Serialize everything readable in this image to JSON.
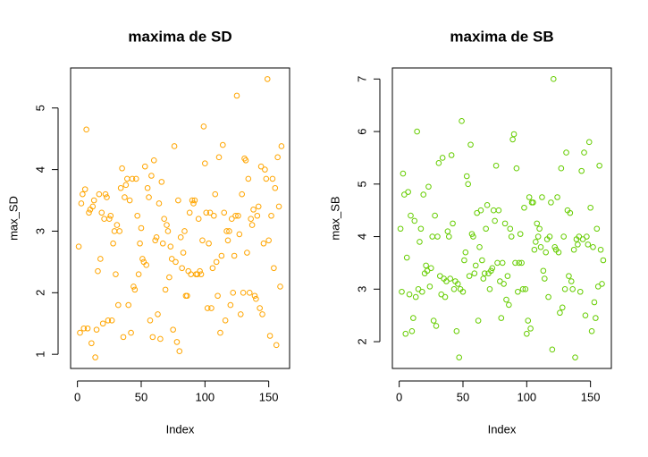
{
  "chart_data": [
    {
      "type": "scatter",
      "title": "maxima de SD",
      "x_label": "Index",
      "y_label": "max_SD",
      "color": "#ffa500",
      "x": [
        1,
        2,
        3,
        4,
        5,
        6,
        7,
        8,
        9,
        10,
        11,
        12,
        13,
        14,
        15,
        16,
        17,
        18,
        19,
        20,
        21,
        22,
        23,
        24,
        25,
        26,
        27,
        28,
        29,
        30,
        31,
        32,
        33,
        34,
        35,
        36,
        37,
        38,
        39,
        40,
        41,
        42,
        43,
        44,
        45,
        46,
        47,
        48,
        49,
        50,
        51,
        52,
        53,
        54,
        55,
        56,
        57,
        58,
        59,
        60,
        61,
        62,
        63,
        64,
        65,
        66,
        67,
        68,
        69,
        70,
        71,
        72,
        73,
        74,
        75,
        76,
        77,
        78,
        79,
        80,
        81,
        82,
        83,
        84,
        85,
        86,
        87,
        88,
        89,
        90,
        91,
        92,
        93,
        94,
        95,
        96,
        97,
        98,
        99,
        100,
        101,
        102,
        103,
        104,
        105,
        106,
        107,
        108,
        109,
        110,
        111,
        112,
        113,
        114,
        115,
        116,
        117,
        118,
        119,
        120,
        121,
        122,
        123,
        124,
        125,
        126,
        127,
        128,
        129,
        130,
        131,
        132,
        133,
        134,
        135,
        136,
        137,
        138,
        139,
        140,
        141,
        142,
        143,
        144,
        145,
        146,
        147,
        148,
        149,
        150,
        151,
        152,
        153,
        154,
        155,
        156,
        157,
        158,
        159,
        160
      ],
      "values": [
        2.75,
        1.35,
        3.45,
        3.6,
        1.42,
        3.68,
        4.65,
        1.42,
        3.3,
        3.35,
        1.18,
        3.4,
        3.5,
        0.95,
        1.4,
        2.35,
        3.6,
        2.55,
        3.3,
        1.5,
        3.2,
        3.6,
        3.55,
        1.55,
        3.2,
        3.25,
        1.55,
        2.8,
        3.0,
        2.3,
        3.1,
        1.8,
        3.0,
        3.7,
        4.02,
        1.28,
        3.55,
        3.75,
        3.85,
        1.8,
        3.5,
        1.35,
        3.85,
        2.1,
        2.05,
        3.85,
        3.25,
        2.3,
        2.8,
        3.05,
        2.55,
        2.5,
        4.05,
        2.45,
        3.7,
        3.55,
        1.55,
        3.9,
        1.28,
        4.15,
        2.85,
        2.9,
        1.65,
        3.45,
        1.25,
        3.8,
        2.8,
        3.2,
        2.05,
        3.1,
        3.0,
        2.25,
        2.75,
        2.55,
        1.4,
        4.38,
        2.5,
        1.2,
        3.5,
        1.05,
        2.9,
        2.4,
        2.65,
        3.0,
        1.95,
        1.95,
        2.35,
        3.3,
        2.3,
        3.5,
        3.45,
        3.5,
        2.3,
        2.3,
        3.2,
        2.35,
        2.3,
        2.85,
        4.7,
        4.1,
        3.3,
        1.75,
        2.8,
        3.3,
        1.75,
        2.4,
        3.25,
        3.6,
        2.5,
        1.95,
        4.2,
        1.35,
        2.6,
        4.4,
        3.3,
        1.55,
        3.0,
        2.85,
        3.0,
        1.8,
        3.2,
        2.0,
        2.6,
        3.25,
        5.2,
        3.25,
        2.95,
        1.65,
        3.6,
        2.0,
        4.18,
        4.15,
        2.65,
        3.85,
        2.0,
        3.2,
        3.1,
        3.35,
        1.95,
        1.9,
        3.25,
        3.4,
        1.75,
        4.05,
        1.65,
        2.8,
        4.0,
        3.85,
        5.47,
        2.85,
        1.3,
        3.25,
        3.85,
        2.4,
        3.7,
        1.15,
        4.2,
        3.4,
        2.1,
        4.38
      ],
      "xlim": [
        -5.36,
        166.36
      ],
      "ylim": [
        0.77,
        5.65
      ],
      "xticks": [
        0,
        50,
        100,
        150
      ],
      "yticks": [
        1,
        2,
        3,
        4,
        5
      ]
    },
    {
      "type": "scatter",
      "title": "maxima de SB",
      "x_label": "Index",
      "y_label": "max_SB",
      "color": "#66cd00",
      "x": [
        1,
        2,
        3,
        4,
        5,
        6,
        7,
        8,
        9,
        10,
        11,
        12,
        13,
        14,
        15,
        16,
        17,
        18,
        19,
        20,
        21,
        22,
        23,
        24,
        25,
        26,
        27,
        28,
        29,
        30,
        31,
        32,
        33,
        34,
        35,
        36,
        37,
        38,
        39,
        40,
        41,
        42,
        43,
        44,
        45,
        46,
        47,
        48,
        49,
        50,
        51,
        52,
        53,
        54,
        55,
        56,
        57,
        58,
        59,
        60,
        61,
        62,
        63,
        64,
        65,
        66,
        67,
        68,
        69,
        70,
        71,
        72,
        73,
        74,
        75,
        76,
        77,
        78,
        79,
        80,
        81,
        82,
        83,
        84,
        85,
        86,
        87,
        88,
        89,
        90,
        91,
        92,
        93,
        94,
        95,
        96,
        97,
        98,
        99,
        100,
        101,
        102,
        103,
        104,
        105,
        106,
        107,
        108,
        109,
        110,
        111,
        112,
        113,
        114,
        115,
        116,
        117,
        118,
        119,
        120,
        121,
        122,
        123,
        124,
        125,
        126,
        127,
        128,
        129,
        130,
        131,
        132,
        133,
        134,
        135,
        136,
        137,
        138,
        139,
        140,
        141,
        142,
        143,
        144,
        145,
        146,
        147,
        148,
        149,
        150,
        151,
        152,
        153,
        154,
        155,
        156,
        157,
        158,
        159,
        160
      ],
      "values": [
        4.15,
        2.95,
        5.2,
        4.8,
        2.15,
        3.6,
        4.85,
        2.9,
        4.4,
        2.2,
        2.45,
        4.3,
        2.85,
        6.0,
        3.0,
        3.9,
        4.15,
        2.95,
        4.8,
        3.3,
        3.45,
        3.35,
        4.95,
        3.05,
        3.4,
        4.0,
        2.4,
        4.4,
        2.3,
        4.0,
        5.4,
        3.25,
        2.9,
        5.5,
        3.2,
        2.85,
        3.15,
        4.1,
        4.0,
        3.2,
        5.55,
        4.25,
        3.0,
        3.15,
        2.2,
        3.1,
        1.7,
        3.0,
        6.2,
        2.95,
        3.55,
        3.7,
        5.15,
        5.0,
        3.25,
        5.75,
        4.05,
        4.0,
        3.3,
        3.45,
        4.45,
        2.4,
        3.8,
        4.5,
        3.55,
        3.2,
        3.3,
        4.15,
        4.6,
        3.3,
        3.0,
        3.35,
        3.4,
        4.5,
        4.3,
        5.35,
        3.5,
        4.5,
        3.15,
        2.45,
        3.5,
        3.1,
        4.25,
        2.8,
        3.25,
        2.7,
        4.15,
        4.0,
        5.85,
        5.95,
        3.5,
        5.3,
        2.95,
        3.5,
        4.05,
        3.5,
        3.0,
        4.55,
        3.0,
        2.15,
        2.4,
        4.75,
        2.25,
        4.65,
        4.65,
        3.75,
        3.9,
        4.25,
        4.0,
        4.15,
        3.8,
        4.75,
        3.35,
        3.2,
        3.7,
        3.95,
        2.85,
        4.0,
        4.65,
        1.85,
        7.0,
        3.8,
        3.75,
        4.75,
        3.7,
        2.55,
        5.3,
        2.65,
        4.0,
        3.0,
        5.6,
        4.5,
        3.25,
        4.45,
        3.15,
        3.0,
        3.75,
        1.7,
        3.95,
        3.85,
        4.0,
        2.95,
        5.25,
        3.95,
        5.6,
        2.5,
        4.0,
        3.85,
        5.8,
        4.55,
        2.2,
        3.8,
        2.75,
        2.45,
        4.15,
        3.05,
        5.35,
        3.75,
        3.1,
        3.55
      ],
      "xlim": [
        -5.36,
        166.36
      ],
      "ylim": [
        1.49,
        7.21
      ],
      "xticks": [
        0,
        50,
        100,
        150
      ],
      "yticks": [
        2,
        3,
        4,
        5,
        6,
        7
      ]
    }
  ]
}
